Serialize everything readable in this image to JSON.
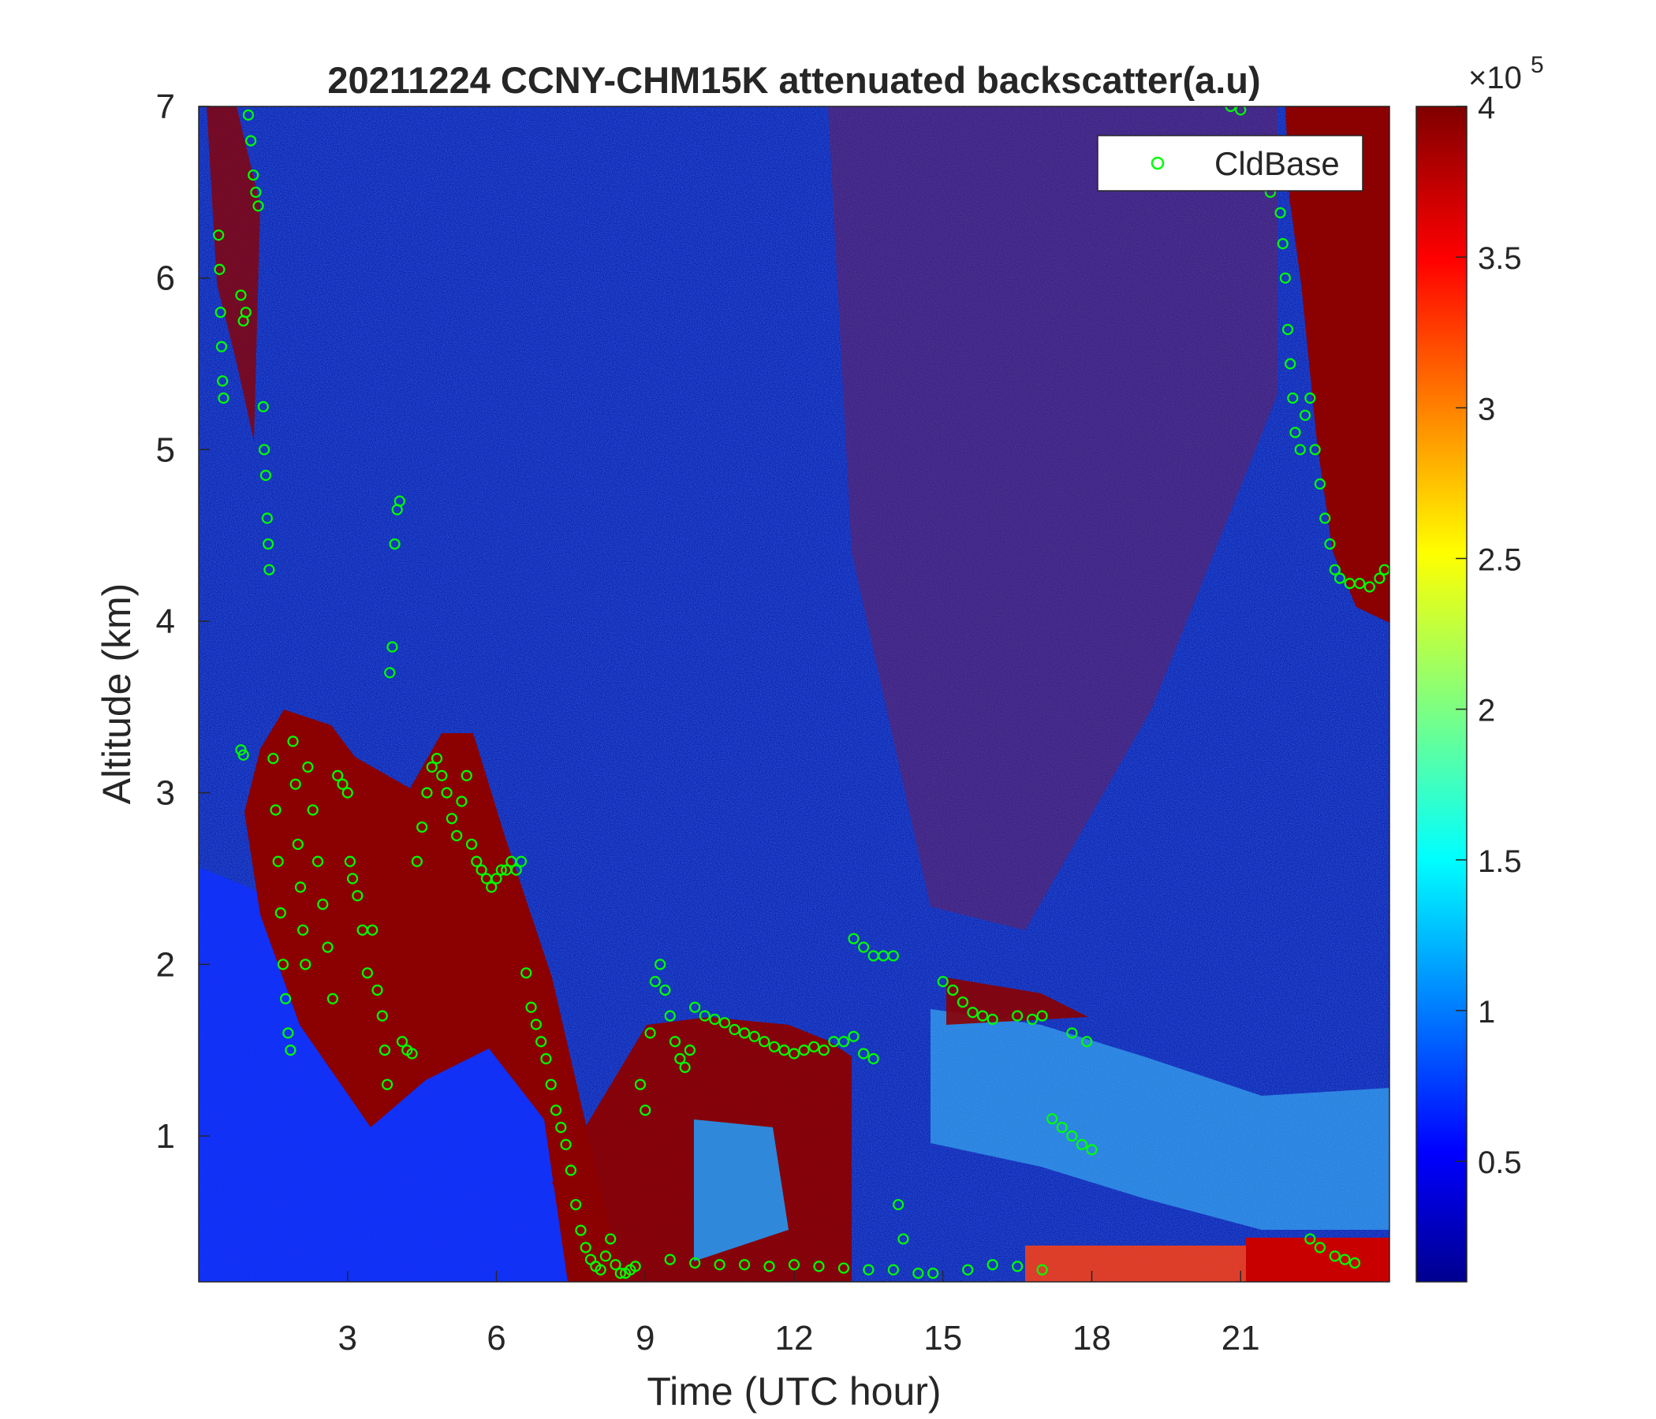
{
  "chart_data": {
    "type": "heatmap",
    "title": "20211224 CCNY-CHM15K attenuated backscatter(a.u)",
    "xlabel": "Time (UTC hour)",
    "ylabel": "Altitude (km)",
    "xlim": [
      0,
      24
    ],
    "ylim": [
      0.15,
      7
    ],
    "x_ticks": [
      3,
      6,
      9,
      12,
      15,
      18,
      21
    ],
    "y_ticks": [
      1,
      2,
      3,
      4,
      5,
      6,
      7
    ],
    "colorbar": {
      "colormap": "jet",
      "range": [
        10000,
        400000
      ],
      "ticks": [
        0.5,
        1,
        1.5,
        2,
        2.5,
        3,
        3.5,
        4
      ],
      "exponent_label": "×10",
      "exponent_power": "5"
    },
    "legend": {
      "position": "top-right",
      "entries": [
        "CldBase"
      ]
    },
    "series": [
      {
        "name": "CldBase",
        "marker": "open-circle",
        "color": "#00ff00",
        "points": [
          [
            0.4,
            6.25
          ],
          [
            0.42,
            6.05
          ],
          [
            0.44,
            5.8
          ],
          [
            0.46,
            5.6
          ],
          [
            0.48,
            5.4
          ],
          [
            0.5,
            5.3
          ],
          [
            1.0,
            6.95
          ],
          [
            1.05,
            6.8
          ],
          [
            1.1,
            6.6
          ],
          [
            1.15,
            6.5
          ],
          [
            1.2,
            6.42
          ],
          [
            0.85,
            5.9
          ],
          [
            0.9,
            5.75
          ],
          [
            0.95,
            5.8
          ],
          [
            1.3,
            5.25
          ],
          [
            1.32,
            5.0
          ],
          [
            1.35,
            4.85
          ],
          [
            1.38,
            4.6
          ],
          [
            1.4,
            4.45
          ],
          [
            1.42,
            4.3
          ],
          [
            0.85,
            3.25
          ],
          [
            0.9,
            3.22
          ],
          [
            1.5,
            3.2
          ],
          [
            1.55,
            2.9
          ],
          [
            1.6,
            2.6
          ],
          [
            1.65,
            2.3
          ],
          [
            1.7,
            2.0
          ],
          [
            1.75,
            1.8
          ],
          [
            1.8,
            1.6
          ],
          [
            1.85,
            1.5
          ],
          [
            1.9,
            3.3
          ],
          [
            1.95,
            3.05
          ],
          [
            2.0,
            2.7
          ],
          [
            2.05,
            2.45
          ],
          [
            2.1,
            2.2
          ],
          [
            2.15,
            2.0
          ],
          [
            2.2,
            3.15
          ],
          [
            2.3,
            2.9
          ],
          [
            2.4,
            2.6
          ],
          [
            2.5,
            2.35
          ],
          [
            2.6,
            2.1
          ],
          [
            2.7,
            1.8
          ],
          [
            2.8,
            3.1
          ],
          [
            2.9,
            3.05
          ],
          [
            3.0,
            3.0
          ],
          [
            3.05,
            2.6
          ],
          [
            3.1,
            2.5
          ],
          [
            3.2,
            2.4
          ],
          [
            3.3,
            2.2
          ],
          [
            3.4,
            1.95
          ],
          [
            3.5,
            2.2
          ],
          [
            3.6,
            1.85
          ],
          [
            3.7,
            1.7
          ],
          [
            3.75,
            1.5
          ],
          [
            3.8,
            1.3
          ],
          [
            3.85,
            3.7
          ],
          [
            3.9,
            3.85
          ],
          [
            3.95,
            4.45
          ],
          [
            4.0,
            4.65
          ],
          [
            4.05,
            4.7
          ],
          [
            4.1,
            1.55
          ],
          [
            4.2,
            1.5
          ],
          [
            4.3,
            1.48
          ],
          [
            4.4,
            2.6
          ],
          [
            4.5,
            2.8
          ],
          [
            4.6,
            3.0
          ],
          [
            4.7,
            3.15
          ],
          [
            4.8,
            3.2
          ],
          [
            4.9,
            3.1
          ],
          [
            5.0,
            3.0
          ],
          [
            5.1,
            2.85
          ],
          [
            5.2,
            2.75
          ],
          [
            5.3,
            2.95
          ],
          [
            5.4,
            3.1
          ],
          [
            5.5,
            2.7
          ],
          [
            5.6,
            2.6
          ],
          [
            5.7,
            2.55
          ],
          [
            5.8,
            2.5
          ],
          [
            5.9,
            2.45
          ],
          [
            6.0,
            2.5
          ],
          [
            6.1,
            2.55
          ],
          [
            6.2,
            2.55
          ],
          [
            6.3,
            2.6
          ],
          [
            6.4,
            2.55
          ],
          [
            6.5,
            2.6
          ],
          [
            6.6,
            1.95
          ],
          [
            6.7,
            1.75
          ],
          [
            6.8,
            1.65
          ],
          [
            6.9,
            1.55
          ],
          [
            7.0,
            1.45
          ],
          [
            7.1,
            1.3
          ],
          [
            7.2,
            1.15
          ],
          [
            7.3,
            1.05
          ],
          [
            7.4,
            0.95
          ],
          [
            7.5,
            0.8
          ],
          [
            7.6,
            0.6
          ],
          [
            7.7,
            0.45
          ],
          [
            7.8,
            0.35
          ],
          [
            7.9,
            0.28
          ],
          [
            8.0,
            0.24
          ],
          [
            8.1,
            0.22
          ],
          [
            8.2,
            0.3
          ],
          [
            8.3,
            0.4
          ],
          [
            8.4,
            0.25
          ],
          [
            8.5,
            0.2
          ],
          [
            8.6,
            0.2
          ],
          [
            8.7,
            0.22
          ],
          [
            8.8,
            0.24
          ],
          [
            8.9,
            1.3
          ],
          [
            9.0,
            1.15
          ],
          [
            9.1,
            1.6
          ],
          [
            9.2,
            1.9
          ],
          [
            9.3,
            2.0
          ],
          [
            9.4,
            1.85
          ],
          [
            9.5,
            1.7
          ],
          [
            9.6,
            1.55
          ],
          [
            9.7,
            1.45
          ],
          [
            9.8,
            1.4
          ],
          [
            9.9,
            1.5
          ],
          [
            10.0,
            1.75
          ],
          [
            10.2,
            1.7
          ],
          [
            10.4,
            1.68
          ],
          [
            10.6,
            1.66
          ],
          [
            10.8,
            1.62
          ],
          [
            11.0,
            1.6
          ],
          [
            11.2,
            1.58
          ],
          [
            11.4,
            1.55
          ],
          [
            11.6,
            1.52
          ],
          [
            11.8,
            1.5
          ],
          [
            12.0,
            1.48
          ],
          [
            12.2,
            1.5
          ],
          [
            12.4,
            1.52
          ],
          [
            12.6,
            1.5
          ],
          [
            12.8,
            1.55
          ],
          [
            13.0,
            1.55
          ],
          [
            13.2,
            1.58
          ],
          [
            13.4,
            1.48
          ],
          [
            13.6,
            1.45
          ],
          [
            13.2,
            2.15
          ],
          [
            13.4,
            2.1
          ],
          [
            13.6,
            2.05
          ],
          [
            13.8,
            2.05
          ],
          [
            14.0,
            2.05
          ],
          [
            14.1,
            0.6
          ],
          [
            14.2,
            0.4
          ],
          [
            15.0,
            1.9
          ],
          [
            15.2,
            1.85
          ],
          [
            15.4,
            1.78
          ],
          [
            15.6,
            1.72
          ],
          [
            15.8,
            1.7
          ],
          [
            16.0,
            1.68
          ],
          [
            16.5,
            1.7
          ],
          [
            16.8,
            1.68
          ],
          [
            17.0,
            1.7
          ],
          [
            17.2,
            1.1
          ],
          [
            17.4,
            1.05
          ],
          [
            17.6,
            1.0
          ],
          [
            17.8,
            0.95
          ],
          [
            18.0,
            0.92
          ],
          [
            17.6,
            1.6
          ],
          [
            17.9,
            1.55
          ],
          [
            9.5,
            0.28
          ],
          [
            10.0,
            0.26
          ],
          [
            10.5,
            0.25
          ],
          [
            11.0,
            0.25
          ],
          [
            11.5,
            0.24
          ],
          [
            12.0,
            0.25
          ],
          [
            12.5,
            0.24
          ],
          [
            13.0,
            0.23
          ],
          [
            13.5,
            0.22
          ],
          [
            14.0,
            0.22
          ],
          [
            14.5,
            0.2
          ],
          [
            14.8,
            0.2
          ],
          [
            15.5,
            0.22
          ],
          [
            16.0,
            0.25
          ],
          [
            16.5,
            0.24
          ],
          [
            17.0,
            0.22
          ],
          [
            20.8,
            7.0
          ],
          [
            21.0,
            6.98
          ],
          [
            21.2,
            6.8
          ],
          [
            21.4,
            6.65
          ],
          [
            21.6,
            6.5
          ],
          [
            21.8,
            6.38
          ],
          [
            21.85,
            6.2
          ],
          [
            21.9,
            6.0
          ],
          [
            21.95,
            5.7
          ],
          [
            22.0,
            5.5
          ],
          [
            22.05,
            5.3
          ],
          [
            22.1,
            5.1
          ],
          [
            22.2,
            5.0
          ],
          [
            22.3,
            5.2
          ],
          [
            22.4,
            5.3
          ],
          [
            22.5,
            5.0
          ],
          [
            22.6,
            4.8
          ],
          [
            22.7,
            4.6
          ],
          [
            22.8,
            4.45
          ],
          [
            22.9,
            4.3
          ],
          [
            23.0,
            4.25
          ],
          [
            23.2,
            4.22
          ],
          [
            23.4,
            4.22
          ],
          [
            23.6,
            4.2
          ],
          [
            23.8,
            4.25
          ],
          [
            23.9,
            4.3
          ],
          [
            22.4,
            0.4
          ],
          [
            22.6,
            0.35
          ],
          [
            22.9,
            0.3
          ],
          [
            23.1,
            0.28
          ],
          [
            23.3,
            0.26
          ]
        ]
      }
    ]
  }
}
